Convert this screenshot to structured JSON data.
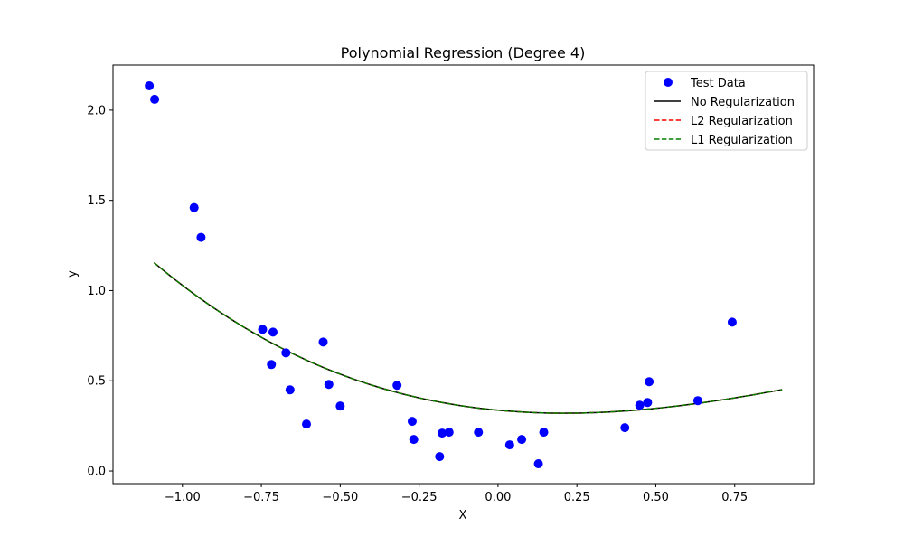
{
  "chart_data": {
    "type": "scatter",
    "title": "Polynomial Regression (Degree 4)",
    "xlabel": "X",
    "ylabel": "y",
    "xlim": [
      -1.22,
      1.0
    ],
    "ylim": [
      -0.07,
      2.25
    ],
    "x_ticks": [
      -1.0,
      -0.75,
      -0.5,
      -0.25,
      0.0,
      0.25,
      0.5,
      0.75
    ],
    "x_tick_labels": [
      "−1.00",
      "−0.75",
      "−0.50",
      "−0.25",
      "0.00",
      "0.25",
      "0.50",
      "0.75"
    ],
    "y_ticks": [
      0.0,
      0.5,
      1.0,
      1.5,
      2.0
    ],
    "y_tick_labels": [
      "0.0",
      "0.5",
      "1.0",
      "1.5",
      "2.0"
    ],
    "grid": false,
    "legend": {
      "placement": "top-right"
    },
    "scatter": {
      "name": "Test Data",
      "color": "#0000ff",
      "points": [
        [
          -1.105,
          2.135
        ],
        [
          -1.088,
          2.06
        ],
        [
          -0.963,
          1.46
        ],
        [
          -0.941,
          1.295
        ],
        [
          -0.746,
          0.785
        ],
        [
          -0.713,
          0.77
        ],
        [
          -0.718,
          0.59
        ],
        [
          -0.672,
          0.655
        ],
        [
          -0.659,
          0.45
        ],
        [
          -0.607,
          0.26
        ],
        [
          -0.554,
          0.715
        ],
        [
          -0.536,
          0.48
        ],
        [
          -0.5,
          0.36
        ],
        [
          -0.32,
          0.475
        ],
        [
          -0.272,
          0.275
        ],
        [
          -0.267,
          0.175
        ],
        [
          -0.185,
          0.08
        ],
        [
          -0.177,
          0.21
        ],
        [
          -0.155,
          0.215
        ],
        [
          -0.062,
          0.215
        ],
        [
          0.037,
          0.145
        ],
        [
          0.075,
          0.175
        ],
        [
          0.128,
          0.04
        ],
        [
          0.145,
          0.215
        ],
        [
          0.402,
          0.24
        ],
        [
          0.449,
          0.365
        ],
        [
          0.474,
          0.38
        ],
        [
          0.479,
          0.495
        ],
        [
          0.633,
          0.39
        ],
        [
          0.742,
          0.825
        ]
      ]
    },
    "series": [
      {
        "name": "No Regularization",
        "color": "#000000",
        "dash": "solid",
        "x_range": [
          -1.09,
          0.9
        ],
        "coefficients": [
          0.337,
          -0.162,
          0.42,
          -0.11,
          0.0
        ]
      },
      {
        "name": "L2 Regularization",
        "color": "#ff0000",
        "dash": "dashed",
        "x_range": [
          -1.09,
          0.9
        ],
        "coefficients": [
          0.337,
          -0.162,
          0.42,
          -0.11,
          0.0
        ]
      },
      {
        "name": "L1 Regularization",
        "color": "#008000",
        "dash": "dashed",
        "x_range": [
          -1.09,
          0.9
        ],
        "coefficients": [
          0.337,
          -0.162,
          0.42,
          -0.11,
          0.0
        ]
      }
    ]
  }
}
